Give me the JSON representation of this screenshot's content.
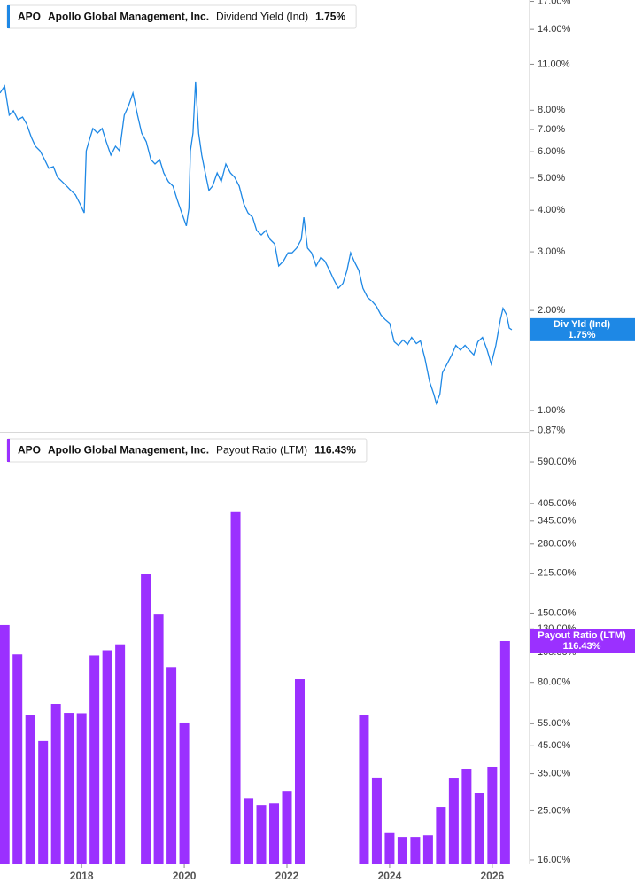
{
  "chart_data": [
    {
      "type": "line",
      "header": {
        "ticker": "APO",
        "company": "Apollo Global Management, Inc.",
        "metric": "Dividend Yield (Ind)",
        "value": "1.75%"
      },
      "badge": {
        "name": "Div Yld (Ind)",
        "value": "1.75%"
      },
      "log_scale": true,
      "xlim": [
        2016.41,
        2026.71
      ],
      "ylim": [
        0.87,
        17.16
      ],
      "yticks": [
        {
          "value": 0.87,
          "label": "0.87%"
        },
        {
          "value": 1,
          "label": "1.00%"
        },
        {
          "value": 2,
          "label": "2.00%"
        },
        {
          "value": 3,
          "label": "3.00%"
        },
        {
          "value": 4,
          "label": "4.00%"
        },
        {
          "value": 5,
          "label": "5.00%"
        },
        {
          "value": 6,
          "label": "6.00%"
        },
        {
          "value": 7,
          "label": "7.00%"
        },
        {
          "value": 8,
          "label": "8.00%"
        },
        {
          "value": 11,
          "label": "11.00%"
        },
        {
          "value": 14,
          "label": "14.00%"
        },
        {
          "value": 17,
          "label": "17.00%"
        }
      ],
      "series": [
        {
          "name": "Dividend Yield (Ind)",
          "color": "#1e88e5",
          "x": [
            2016.41,
            2016.5,
            2016.59,
            2016.67,
            2016.76,
            2016.85,
            2016.93,
            2017.02,
            2017.1,
            2017.19,
            2017.28,
            2017.36,
            2017.45,
            2017.53,
            2017.62,
            2017.71,
            2017.79,
            2017.88,
            2017.97,
            2018.05,
            2018.09,
            2018.14,
            2018.22,
            2018.31,
            2018.4,
            2018.48,
            2018.57,
            2018.66,
            2018.74,
            2018.83,
            2018.91,
            2019.0,
            2019.09,
            2019.17,
            2019.26,
            2019.35,
            2019.43,
            2019.52,
            2019.6,
            2019.69,
            2019.78,
            2019.86,
            2019.95,
            2020.04,
            2020.09,
            2020.12,
            2020.17,
            2020.22,
            2020.28,
            2020.34,
            2020.41,
            2020.48,
            2020.55,
            2020.64,
            2020.72,
            2020.81,
            2020.9,
            2020.98,
            2021.07,
            2021.16,
            2021.24,
            2021.33,
            2021.41,
            2021.5,
            2021.59,
            2021.67,
            2021.76,
            2021.84,
            2021.93,
            2022.02,
            2022.1,
            2022.19,
            2022.28,
            2022.33,
            2022.4,
            2022.48,
            2022.57,
            2022.66,
            2022.74,
            2022.83,
            2022.91,
            2023.0,
            2023.09,
            2023.17,
            2023.24,
            2023.31,
            2023.4,
            2023.48,
            2023.57,
            2023.66,
            2023.74,
            2023.83,
            2023.91,
            2024.0,
            2024.09,
            2024.17,
            2024.26,
            2024.35,
            2024.43,
            2024.52,
            2024.6,
            2024.69,
            2024.78,
            2024.86,
            2024.91,
            2024.98,
            2025.03,
            2025.12,
            2025.21,
            2025.29,
            2025.38,
            2025.47,
            2025.55,
            2025.64,
            2025.72,
            2025.81,
            2025.9,
            2025.98,
            2026.07,
            2026.16,
            2026.21,
            2026.28,
            2026.33,
            2026.38
          ],
          "values": [
            9.01,
            9.46,
            7.73,
            7.97,
            7.49,
            7.63,
            7.27,
            6.63,
            6.23,
            6.04,
            5.68,
            5.35,
            5.41,
            5.03,
            4.88,
            4.73,
            4.59,
            4.45,
            4.18,
            3.93,
            6.04,
            6.43,
            7.05,
            6.83,
            7.05,
            6.43,
            5.86,
            6.23,
            6.04,
            7.73,
            8.22,
            9.01,
            7.73,
            6.83,
            6.43,
            5.68,
            5.51,
            5.68,
            5.18,
            4.88,
            4.73,
            4.31,
            3.93,
            3.59,
            4.06,
            6.04,
            6.83,
            9.76,
            6.83,
            5.86,
            5.18,
            4.59,
            4.73,
            5.18,
            4.88,
            5.51,
            5.18,
            5.03,
            4.73,
            4.18,
            3.93,
            3.81,
            3.48,
            3.37,
            3.48,
            3.27,
            3.17,
            2.72,
            2.81,
            2.98,
            2.98,
            3.08,
            3.27,
            3.81,
            3.08,
            2.98,
            2.72,
            2.89,
            2.81,
            2.64,
            2.48,
            2.33,
            2.41,
            2.64,
            2.98,
            2.81,
            2.64,
            2.33,
            2.19,
            2.13,
            2.06,
            1.94,
            1.88,
            1.83,
            1.61,
            1.57,
            1.63,
            1.58,
            1.66,
            1.59,
            1.62,
            1.43,
            1.22,
            1.12,
            1.05,
            1.12,
            1.3,
            1.38,
            1.47,
            1.57,
            1.52,
            1.57,
            1.52,
            1.47,
            1.61,
            1.66,
            1.52,
            1.38,
            1.57,
            1.88,
            2.03,
            1.94,
            1.77,
            1.75
          ]
        }
      ]
    },
    {
      "type": "bar",
      "header": {
        "ticker": "APO",
        "company": "Apollo Global Management, Inc.",
        "metric": "Payout Ratio (LTM)",
        "value": "116.43%"
      },
      "badge": {
        "name": "Payout Ratio (LTM)",
        "value": "116.43%"
      },
      "log_scale": true,
      "xlim": [
        2016.41,
        2026.71
      ],
      "ylim": [
        15.4,
        745
      ],
      "xticks": [
        2018,
        2020,
        2022,
        2024,
        2026
      ],
      "yticks": [
        {
          "value": 16,
          "label": "16.00%"
        },
        {
          "value": 25,
          "label": "25.00%"
        },
        {
          "value": 35,
          "label": "35.00%"
        },
        {
          "value": 45,
          "label": "45.00%"
        },
        {
          "value": 55,
          "label": "55.00%"
        },
        {
          "value": 80,
          "label": "80.00%"
        },
        {
          "value": 105,
          "label": "105.00%"
        },
        {
          "value": 130,
          "label": "130.00%"
        },
        {
          "value": 150,
          "label": "150.00%"
        },
        {
          "value": 215,
          "label": "215.00%"
        },
        {
          "value": 280,
          "label": "280.00%"
        },
        {
          "value": 345,
          "label": "345.00%"
        },
        {
          "value": 405,
          "label": "405.00%"
        },
        {
          "value": 590,
          "label": "590.00%"
        }
      ],
      "series": [
        {
          "name": "Payout Ratio (LTM)",
          "color": "#9b30ff",
          "x": [
            2016.5,
            2016.75,
            2017,
            2017.25,
            2017.5,
            2017.75,
            2018,
            2018.25,
            2018.5,
            2018.75,
            2019.25,
            2019.5,
            2019.75,
            2020,
            2021,
            2021.25,
            2021.5,
            2021.75,
            2022,
            2022.25,
            2023.5,
            2023.75,
            2024,
            2024.25,
            2024.5,
            2024.75,
            2025,
            2025.25,
            2025.5,
            2025.75,
            2026,
            2026.25
          ],
          "values": [
            134.6,
            103,
            59.3,
            47,
            65.8,
            60.7,
            60.5,
            102,
            107,
            113,
            214,
            148,
            92,
            55.6,
            377,
            28,
            26.3,
            26.7,
            29.9,
            82.4,
            59.3,
            33.8,
            20.4,
            19.7,
            19.7,
            20,
            25.9,
            33.5,
            36.6,
            29.4,
            37.2,
            116.43
          ]
        }
      ]
    }
  ]
}
